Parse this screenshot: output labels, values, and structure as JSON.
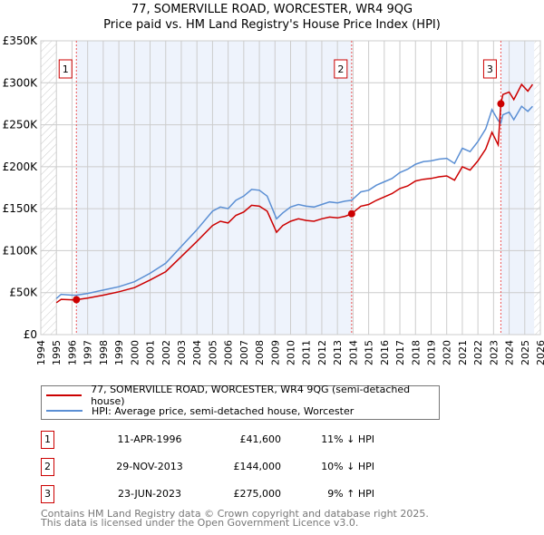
{
  "chart_data": {
    "type": "line",
    "title": "77, SOMERVILLE ROAD, WORCESTER, WR4 9QG",
    "subtitle": "Price paid vs. HM Land Registry's House Price Index (HPI)",
    "xlim": [
      1994,
      2026
    ],
    "ylim": [
      0,
      350000
    ],
    "y_ticks": [
      "£0",
      "£50K",
      "£100K",
      "£150K",
      "£200K",
      "£250K",
      "£300K",
      "£350K"
    ],
    "x_ticks": [
      "1994",
      "1995",
      "1996",
      "1997",
      "1998",
      "1999",
      "2000",
      "2001",
      "2002",
      "2003",
      "2004",
      "2005",
      "2006",
      "2007",
      "2008",
      "2009",
      "2010",
      "2011",
      "2012",
      "2013",
      "2014",
      "2015",
      "2016",
      "2017",
      "2018",
      "2019",
      "2020",
      "2021",
      "2022",
      "2023",
      "2024",
      "2025",
      "2026"
    ],
    "grid": true,
    "series": [
      {
        "name": "77, SOMERVILLE ROAD, WORCESTER, WR4 9QG (semi-detached house)",
        "color": "#cc0000",
        "x": [
          1995,
          1995.3,
          1996,
          1996.28,
          1997,
          1998,
          1999,
          2000,
          2001,
          2002,
          2003,
          2004,
          2005,
          2005.5,
          2006,
          2006.5,
          2007,
          2007.5,
          2008,
          2008.5,
          2009.1,
          2009.5,
          2010,
          2010.5,
          2011,
          2011.5,
          2012,
          2012.5,
          2013,
          2013.5,
          2013.91,
          2014.5,
          2015,
          2015.5,
          2016,
          2016.5,
          2017,
          2017.5,
          2018,
          2018.5,
          2019,
          2019.5,
          2020,
          2020.5,
          2021,
          2021.5,
          2022,
          2022.5,
          2022.9,
          2023.3,
          2023.47,
          2023.6,
          2024,
          2024.3,
          2024.8,
          2025.2,
          2025.5
        ],
        "y": [
          38000,
          42000,
          41500,
          41600,
          43500,
          47000,
          51000,
          56000,
          65000,
          75000,
          93000,
          111000,
          130000,
          135000,
          133000,
          142000,
          146000,
          154000,
          153000,
          147000,
          122000,
          130000,
          135000,
          138000,
          136000,
          135000,
          138000,
          140000,
          139000,
          141000,
          144000,
          153000,
          155000,
          160000,
          164000,
          168000,
          174000,
          177000,
          183000,
          185000,
          186000,
          188000,
          189000,
          184000,
          200000,
          196000,
          207000,
          221000,
          241000,
          226000,
          275000,
          286000,
          289000,
          280000,
          298000,
          290000,
          298000
        ]
      },
      {
        "name": "HPI: Average price, semi-detached house, Worcester",
        "color": "#5b8fd4",
        "x": [
          1995,
          1995.3,
          1996,
          1996.28,
          1997,
          1998,
          1999,
          2000,
          2001,
          2002,
          2003,
          2004,
          2005,
          2005.5,
          2006,
          2006.5,
          2007,
          2007.5,
          2008,
          2008.5,
          2009.1,
          2009.5,
          2010,
          2010.5,
          2011,
          2011.5,
          2012,
          2012.5,
          2013,
          2013.5,
          2013.91,
          2014.5,
          2015,
          2015.5,
          2016,
          2016.5,
          2017,
          2017.5,
          2018,
          2018.5,
          2019,
          2019.5,
          2020,
          2020.5,
          2021,
          2021.5,
          2022,
          2022.5,
          2022.9,
          2023.3,
          2023.47,
          2023.6,
          2024,
          2024.3,
          2024.8,
          2025.2,
          2025.5
        ],
        "y": [
          43000,
          48000,
          47000,
          47000,
          49000,
          53000,
          57000,
          63000,
          73000,
          85000,
          105000,
          125000,
          147000,
          152000,
          150000,
          160000,
          165000,
          173000,
          172000,
          165000,
          138000,
          145000,
          152000,
          155000,
          153000,
          152000,
          155000,
          158000,
          157000,
          159000,
          160000,
          170000,
          172000,
          178000,
          182000,
          186000,
          193000,
          197000,
          203000,
          206000,
          207000,
          209000,
          210000,
          204000,
          222000,
          218000,
          230000,
          245000,
          268000,
          255000,
          252000,
          262000,
          265000,
          256000,
          272000,
          266000,
          272000
        ]
      }
    ],
    "sales": [
      {
        "label": "1",
        "x": 1996.28,
        "y": 41600
      },
      {
        "label": "2",
        "x": 2013.91,
        "y": 144000
      },
      {
        "label": "3",
        "x": 2023.47,
        "y": 275000
      }
    ],
    "legend_position": "below"
  },
  "table": [
    {
      "num": "1",
      "date": "11-APR-1996",
      "price": "£41,600",
      "hpi": "11% ↓ HPI"
    },
    {
      "num": "2",
      "date": "29-NOV-2013",
      "price": "£144,000",
      "hpi": "10% ↓ HPI"
    },
    {
      "num": "3",
      "date": "23-JUN-2023",
      "price": "£275,000",
      "hpi": "9% ↑ HPI"
    }
  ],
  "footer": [
    "Contains HM Land Registry data © Crown copyright and database right 2025.",
    "This data is licensed under the Open Government Licence v3.0."
  ]
}
